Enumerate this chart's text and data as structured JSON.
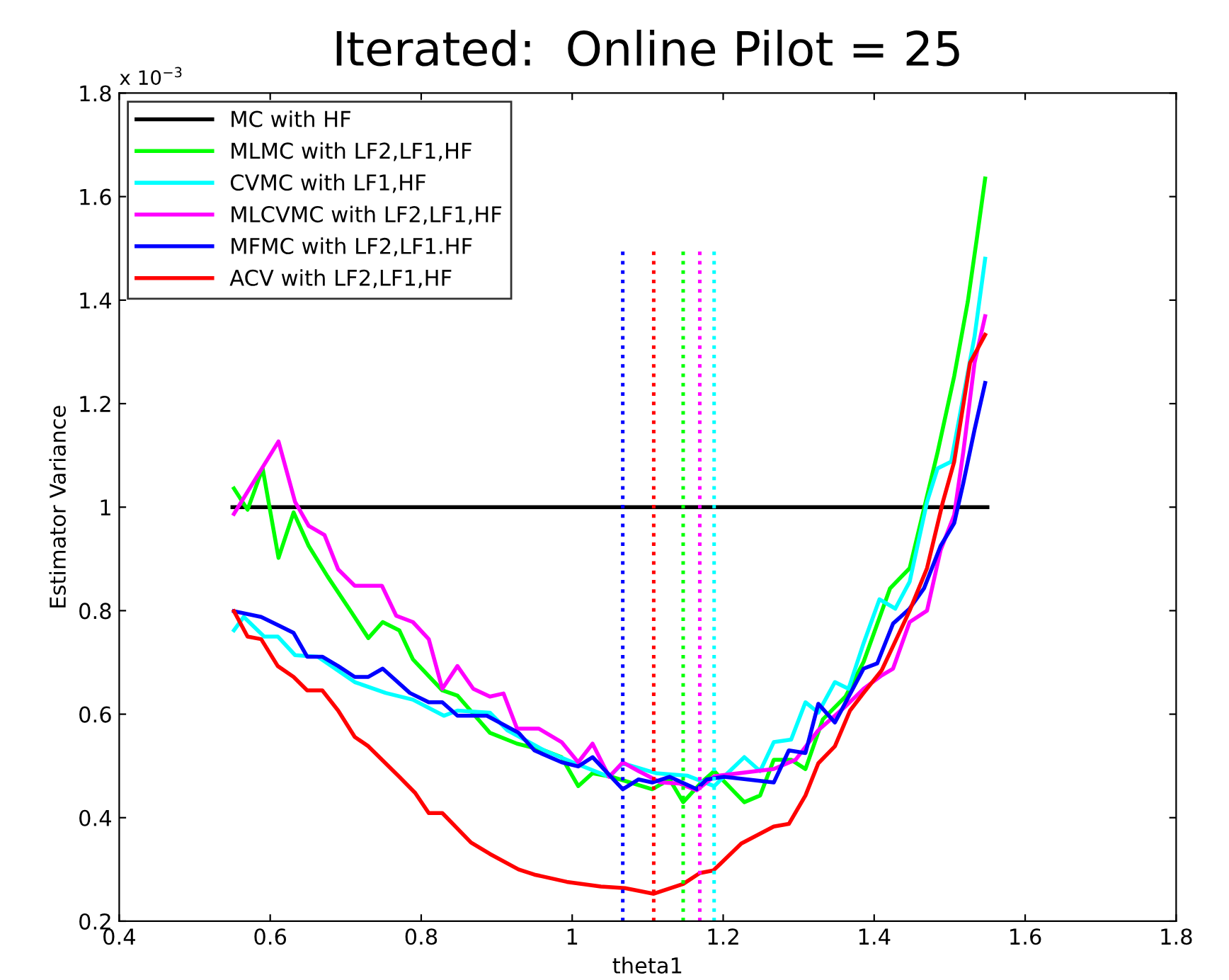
{
  "chart_data": {
    "type": "line",
    "title": "Iterated:  Online Pilot = 25",
    "xlabel": "theta1",
    "ylabel": "Estimator Variance",
    "annotations": [
      "x 10$^{−3}$"
    ],
    "xlim": [
      0.4,
      1.8
    ],
    "ylim": [
      0.2,
      1.8
    ],
    "xticks": [
      0.4,
      0.6,
      0.8,
      1,
      1.2,
      1.4,
      1.6,
      1.8
    ],
    "yticks": [
      0.2,
      0.4,
      0.6,
      0.8,
      1,
      1.2,
      1.4,
      1.6,
      1.8
    ],
    "grid": false,
    "legend": "top left",
    "line_style": "solid",
    "marker": "none",
    "series": [
      {
        "name": "MC with HF",
        "color": "#000000",
        "x": [
          0.55,
          1.55
        ],
        "values": [
          1,
          1
        ]
      },
      {
        "name": "MLMC with LF2,LF1,HF",
        "color": "#00ff00",
        "x": [
          0.552,
          0.57,
          0.59,
          0.611,
          0.631,
          0.651,
          0.676,
          0.708,
          0.73,
          0.749,
          0.771,
          0.789,
          0.828,
          0.848,
          0.891,
          0.927,
          0.963,
          0.986,
          1.008,
          1.027,
          1.052,
          1.106,
          1.129,
          1.147,
          1.171,
          1.188,
          1.228,
          1.249,
          1.267,
          1.29,
          1.309,
          1.332,
          1.362,
          1.386,
          1.421,
          1.447,
          1.484,
          1.506,
          1.524,
          1.536,
          1.547
        ],
        "values": [
          1.036,
          0.995,
          1.075,
          0.902,
          0.99,
          0.925,
          0.866,
          0.796,
          0.747,
          0.778,
          0.762,
          0.706,
          0.646,
          0.636,
          0.564,
          0.543,
          0.53,
          0.517,
          0.461,
          0.486,
          0.479,
          0.455,
          0.474,
          0.43,
          0.468,
          0.49,
          0.43,
          0.443,
          0.512,
          0.512,
          0.494,
          0.59,
          0.634,
          0.701,
          0.843,
          0.882,
          1.106,
          1.253,
          1.397,
          1.519,
          1.635
        ]
      },
      {
        "name": "CVMC with LF1,HF",
        "color": "#00ffff",
        "x": [
          0.552,
          0.565,
          0.592,
          0.61,
          0.633,
          0.663,
          0.712,
          0.753,
          0.789,
          0.83,
          0.848,
          0.891,
          0.914,
          0.963,
          1.004,
          1.049,
          1.067,
          1.111,
          1.153,
          1.188,
          1.228,
          1.249,
          1.267,
          1.29,
          1.309,
          1.326,
          1.348,
          1.366,
          1.386,
          1.407,
          1.428,
          1.447,
          1.47,
          1.484,
          1.502,
          1.533,
          1.547
        ],
        "values": [
          0.762,
          0.788,
          0.75,
          0.75,
          0.714,
          0.711,
          0.662,
          0.641,
          0.628,
          0.597,
          0.607,
          0.603,
          0.569,
          0.53,
          0.505,
          0.479,
          0.505,
          0.486,
          0.481,
          0.461,
          0.517,
          0.49,
          0.546,
          0.551,
          0.623,
          0.603,
          0.662,
          0.649,
          0.737,
          0.822,
          0.804,
          0.856,
          1.01,
          1.075,
          1.088,
          1.33,
          1.48
        ]
      },
      {
        "name": "MLCVMC with LF2,LF1,HF",
        "color": "#ff00ff",
        "x": [
          0.552,
          0.611,
          0.633,
          0.651,
          0.672,
          0.69,
          0.712,
          0.748,
          0.767,
          0.789,
          0.81,
          0.828,
          0.848,
          0.869,
          0.891,
          0.909,
          0.927,
          0.956,
          0.986,
          1.008,
          1.027,
          1.049,
          1.067,
          1.088,
          1.117,
          1.142,
          1.165,
          1.188,
          1.267,
          1.296,
          1.326,
          1.362,
          1.386,
          1.41,
          1.425,
          1.447,
          1.47,
          1.488,
          1.506,
          1.518,
          1.533,
          1.547
        ],
        "values": [
          0.987,
          1.127,
          1.01,
          0.964,
          0.946,
          0.88,
          0.848,
          0.848,
          0.79,
          0.778,
          0.745,
          0.649,
          0.693,
          0.649,
          0.634,
          0.64,
          0.572,
          0.572,
          0.546,
          0.507,
          0.543,
          0.479,
          0.507,
          0.49,
          0.468,
          0.466,
          0.453,
          0.48,
          0.494,
          0.512,
          0.569,
          0.615,
          0.649,
          0.675,
          0.688,
          0.778,
          0.8,
          0.917,
          0.985,
          1.106,
          1.279,
          1.369
        ]
      },
      {
        "name": "MFMC with LF2,LF1.HF",
        "color": "#0000ff",
        "x": [
          0.552,
          0.588,
          0.613,
          0.631,
          0.649,
          0.669,
          0.69,
          0.712,
          0.73,
          0.749,
          0.785,
          0.81,
          0.828,
          0.848,
          0.887,
          0.929,
          0.95,
          0.986,
          1.008,
          1.027,
          1.067,
          1.088,
          1.106,
          1.129,
          1.165,
          1.178,
          1.201,
          1.267,
          1.287,
          1.309,
          1.326,
          1.348,
          1.386,
          1.404,
          1.425,
          1.447,
          1.466,
          1.488,
          1.506,
          1.518,
          1.533,
          1.547
        ],
        "values": [
          0.799,
          0.788,
          0.77,
          0.757,
          0.711,
          0.711,
          0.693,
          0.672,
          0.672,
          0.688,
          0.641,
          0.623,
          0.623,
          0.597,
          0.597,
          0.564,
          0.53,
          0.507,
          0.499,
          0.517,
          0.455,
          0.474,
          0.468,
          0.479,
          0.455,
          0.474,
          0.479,
          0.468,
          0.53,
          0.525,
          0.62,
          0.584,
          0.688,
          0.698,
          0.775,
          0.804,
          0.843,
          0.925,
          0.969,
          1.046,
          1.15,
          1.24
        ]
      },
      {
        "name": "ACV with LF2,LF1,HF",
        "color": "#ff0000",
        "x": [
          0.552,
          0.57,
          0.588,
          0.61,
          0.631,
          0.649,
          0.669,
          0.69,
          0.712,
          0.73,
          0.771,
          0.792,
          0.81,
          0.828,
          0.866,
          0.891,
          0.929,
          0.95,
          0.993,
          1.038,
          1.07,
          1.108,
          1.147,
          1.169,
          1.187,
          1.224,
          1.267,
          1.287,
          1.309,
          1.326,
          1.348,
          1.368,
          1.386,
          1.41,
          1.421,
          1.447,
          1.47,
          1.491,
          1.506,
          1.527,
          1.547
        ],
        "values": [
          0.799,
          0.75,
          0.745,
          0.693,
          0.672,
          0.646,
          0.646,
          0.607,
          0.556,
          0.538,
          0.479,
          0.448,
          0.409,
          0.409,
          0.352,
          0.33,
          0.3,
          0.29,
          0.276,
          0.267,
          0.264,
          0.253,
          0.272,
          0.293,
          0.298,
          0.35,
          0.383,
          0.388,
          0.443,
          0.505,
          0.538,
          0.607,
          0.641,
          0.685,
          0.719,
          0.8,
          0.882,
          1.01,
          1.088,
          1.279,
          1.333
        ]
      },
      {
        "color": "#0000ff",
        "line_style": "dotted",
        "x": [
          1.067,
          1.067
        ],
        "values": [
          0.2,
          1.5
        ]
      },
      {
        "color": "#ff0000",
        "line_style": "dotted",
        "x": [
          1.108,
          1.108
        ],
        "values": [
          0.2,
          1.5
        ]
      },
      {
        "color": "#00ff00",
        "line_style": "dotted",
        "x": [
          1.147,
          1.147
        ],
        "values": [
          0.2,
          1.5
        ]
      },
      {
        "color": "#ff00ff",
        "line_style": "dotted",
        "x": [
          1.169,
          1.169
        ],
        "values": [
          0.2,
          1.5
        ]
      },
      {
        "color": "#00ffff",
        "line_style": "dotted",
        "x": [
          1.188,
          1.188
        ],
        "values": [
          0.2,
          1.5
        ]
      }
    ]
  }
}
